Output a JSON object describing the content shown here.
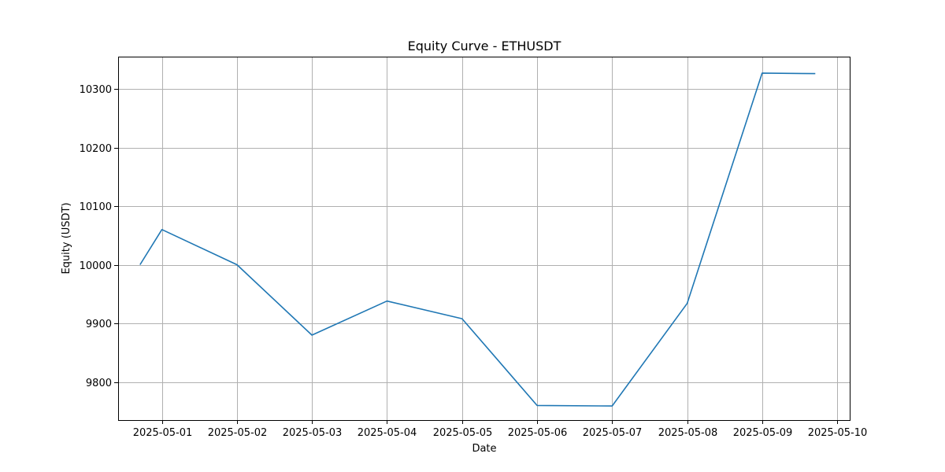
{
  "chart_data": {
    "type": "line",
    "title": "Equity Curve - ETHUSDT",
    "xlabel": "Date",
    "ylabel": "Equity (USDT)",
    "x_ticks": [
      "2025-05-01",
      "2025-05-02",
      "2025-05-03",
      "2025-05-04",
      "2025-05-05",
      "2025-05-06",
      "2025-05-07",
      "2025-05-08",
      "2025-05-09",
      "2025-05-10"
    ],
    "y_ticks": [
      9800,
      9900,
      10000,
      10100,
      10200,
      10300
    ],
    "xlim": [
      "2025-04-30T10:00",
      "2025-05-10T04:00"
    ],
    "ylim": [
      9735,
      10355
    ],
    "grid": true,
    "series": [
      {
        "color": "#1f77b4",
        "x": [
          "2025-04-30T17:00",
          "2025-05-01T00:00",
          "2025-05-02T00:00",
          "2025-05-03T00:00",
          "2025-05-04T00:00",
          "2025-05-05T00:00",
          "2025-05-06T00:00",
          "2025-05-07T00:00",
          "2025-05-08T00:00",
          "2025-05-09T00:00",
          "2025-05-09T17:00"
        ],
        "y": [
          10000,
          10060,
          10000,
          9880,
          9938,
          9908,
          9760,
          9759,
          9934,
          10327,
          10326
        ]
      }
    ]
  }
}
